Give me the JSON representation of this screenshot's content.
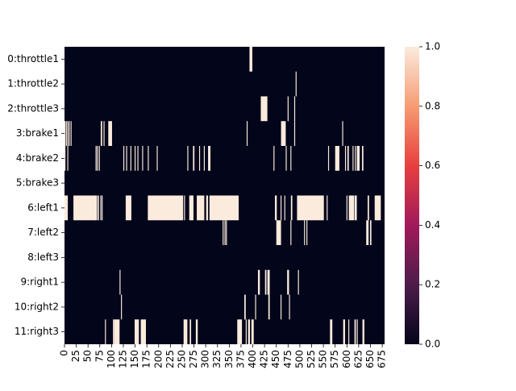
{
  "chart_data": {
    "type": "heatmap",
    "title": "",
    "xlabel": "",
    "ylabel": "",
    "x_range": [
      0,
      680
    ],
    "x_ticks": [
      0,
      25,
      50,
      75,
      100,
      125,
      150,
      175,
      200,
      225,
      250,
      275,
      300,
      325,
      350,
      375,
      400,
      425,
      450,
      475,
      500,
      525,
      550,
      575,
      600,
      625,
      650,
      675
    ],
    "rows": [
      "0:throttle1",
      "1:throttle2",
      "2:throttle3",
      "3:brake1",
      "4:brake2",
      "5:brake3",
      "6:left1",
      "7:left2",
      "8:left3",
      "9:right1",
      "10:right2",
      "11:right3"
    ],
    "value_range": [
      0,
      1
    ],
    "colorbar_ticks": [
      "0.0",
      "0.2",
      "0.4",
      "0.6",
      "0.8",
      "1.0"
    ],
    "colormap": [
      "#03051a",
      "#4c1d4b",
      "#a11a5b",
      "#e83f3f",
      "#f69c73",
      "#faebdd"
    ],
    "active_intervals": {
      "0:throttle1": [
        [
          393,
          399
        ]
      ],
      "1:throttle2": [
        [
          491,
          493
        ]
      ],
      "2:throttle3": [
        [
          417,
          431
        ],
        [
          474,
          476
        ],
        [
          488,
          490
        ]
      ],
      "3:brake1": [
        [
          0,
          2
        ],
        [
          3,
          5
        ],
        [
          6,
          8
        ],
        [
          9,
          11
        ],
        [
          13,
          15
        ],
        [
          77,
          80
        ],
        [
          83,
          85
        ],
        [
          93,
          101
        ],
        [
          387,
          389
        ],
        [
          460,
          470
        ],
        [
          488,
          490
        ],
        [
          590,
          592
        ]
      ],
      "4:brake2": [
        [
          0,
          2
        ],
        [
          6,
          8
        ],
        [
          66,
          68
        ],
        [
          69,
          71
        ],
        [
          73,
          75
        ],
        [
          125,
          127
        ],
        [
          131,
          133
        ],
        [
          140,
          142
        ],
        [
          149,
          151
        ],
        [
          155,
          157
        ],
        [
          165,
          167
        ],
        [
          177,
          179
        ],
        [
          196,
          198
        ],
        [
          261,
          263
        ],
        [
          273,
          276
        ],
        [
          286,
          288
        ],
        [
          296,
          298
        ],
        [
          305,
          310
        ],
        [
          444,
          446
        ],
        [
          470,
          472
        ],
        [
          480,
          482
        ],
        [
          560,
          562
        ],
        [
          575,
          584
        ],
        [
          596,
          598
        ],
        [
          601,
          604
        ],
        [
          612,
          614
        ],
        [
          617,
          619
        ],
        [
          621,
          627
        ],
        [
          632,
          635
        ]
      ],
      "5:brake3": [],
      "6:left1": [
        [
          0,
          7
        ],
        [
          19,
          69
        ],
        [
          70,
          73
        ],
        [
          76,
          78
        ],
        [
          79,
          81
        ],
        [
          130,
          142
        ],
        [
          177,
          252
        ],
        [
          254,
          256
        ],
        [
          265,
          274
        ],
        [
          281,
          297
        ],
        [
          301,
          305
        ],
        [
          308,
          370
        ],
        [
          447,
          451
        ],
        [
          459,
          461
        ],
        [
          467,
          469
        ],
        [
          481,
          484
        ],
        [
          494,
          551
        ],
        [
          557,
          559
        ],
        [
          599,
          601
        ],
        [
          604,
          615
        ],
        [
          616,
          621
        ],
        [
          644,
          647
        ],
        [
          659,
          672
        ]
      ],
      "7:left2": [
        [
          336,
          338
        ],
        [
          340,
          342
        ],
        [
          343,
          345
        ],
        [
          450,
          460
        ],
        [
          480,
          482
        ],
        [
          509,
          511
        ],
        [
          514,
          516
        ],
        [
          641,
          646
        ],
        [
          649,
          652
        ]
      ],
      "8:left3": [],
      "9:right1": [
        [
          117,
          119
        ],
        [
          411,
          415
        ],
        [
          426,
          429
        ],
        [
          431,
          436
        ],
        [
          473,
          477
        ],
        [
          496,
          498
        ]
      ],
      "10:right2": [
        [
          120,
          122
        ],
        [
          382,
          385
        ],
        [
          405,
          407
        ],
        [
          433,
          436
        ],
        [
          459,
          461
        ],
        [
          477,
          479
        ]
      ],
      "11:right3": [
        [
          86,
          88
        ],
        [
          103,
          105
        ],
        [
          105,
          117
        ],
        [
          149,
          158
        ],
        [
          162,
          173
        ],
        [
          253,
          261
        ],
        [
          266,
          269
        ],
        [
          279,
          283
        ],
        [
          367,
          377
        ],
        [
          385,
          387
        ],
        [
          390,
          394
        ],
        [
          397,
          402
        ],
        [
          564,
          569
        ],
        [
          592,
          596
        ],
        [
          603,
          605
        ],
        [
          616,
          619
        ],
        [
          621,
          623
        ],
        [
          633,
          637
        ]
      ]
    }
  }
}
